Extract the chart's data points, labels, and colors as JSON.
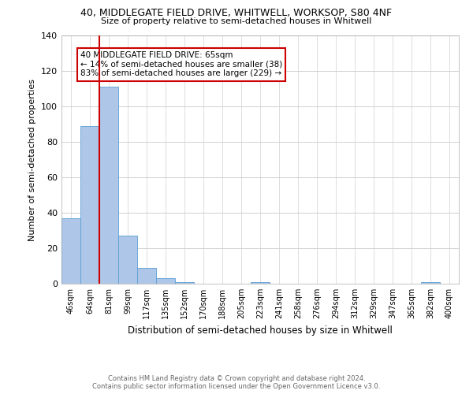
{
  "title_line1": "40, MIDDLEGATE FIELD DRIVE, WHITWELL, WORKSOP, S80 4NF",
  "title_line2": "Size of property relative to semi-detached houses in Whitwell",
  "xlabel": "Distribution of semi-detached houses by size in Whitwell",
  "ylabel": "Number of semi-detached properties",
  "annotation_line1": "40 MIDDLEGATE FIELD DRIVE: 65sqm",
  "annotation_line2": "← 14% of semi-detached houses are smaller (38)",
  "annotation_line3": "83% of semi-detached houses are larger (229) →",
  "footer_line1": "Contains HM Land Registry data © Crown copyright and database right 2024.",
  "footer_line2": "Contains public sector information licensed under the Open Government Licence v3.0.",
  "categories": [
    "46sqm",
    "64sqm",
    "81sqm",
    "99sqm",
    "117sqm",
    "135sqm",
    "152sqm",
    "170sqm",
    "188sqm",
    "205sqm",
    "223sqm",
    "241sqm",
    "258sqm",
    "276sqm",
    "294sqm",
    "312sqm",
    "329sqm",
    "347sqm",
    "365sqm",
    "382sqm",
    "400sqm"
  ],
  "values": [
    37,
    89,
    111,
    27,
    9,
    3,
    1,
    0,
    0,
    0,
    1,
    0,
    0,
    0,
    0,
    0,
    0,
    0,
    0,
    1,
    0
  ],
  "bar_color": "#aec6e8",
  "bar_edge_color": "#5a9fd4",
  "ylim": [
    0,
    140
  ],
  "yticks": [
    0,
    20,
    40,
    60,
    80,
    100,
    120,
    140
  ],
  "annotation_box_color": "#ffffff",
  "annotation_box_edge": "#cc0000",
  "red_line_color": "#cc0000",
  "grid_color": "#d0d0d0",
  "background_color": "#ffffff"
}
